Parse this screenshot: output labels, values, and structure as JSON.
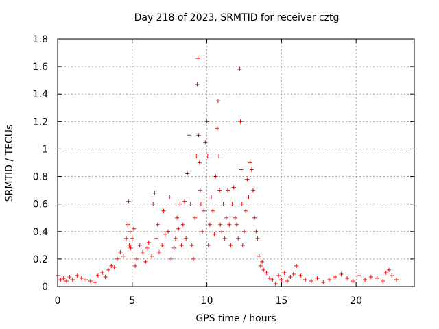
{
  "chart_data": {
    "type": "scatter",
    "title": "Day 218 of 2023, SRMTID for receiver cztg",
    "xlabel": "GPS time / hours",
    "ylabel": "SRMTID / TECUs",
    "xlim": [
      0,
      23.9
    ],
    "ylim": [
      0,
      1.8
    ],
    "xticks": [
      "0",
      "5",
      "10",
      "15",
      "20"
    ],
    "xtick_values": [
      0,
      5,
      10,
      15,
      20
    ],
    "yticks": [
      "0",
      "0.2",
      "0.4",
      "0.6",
      "0.8",
      "1",
      "1.2",
      "1.4",
      "1.6",
      "1.8"
    ],
    "ytick_values": [
      0,
      0.2,
      0.4,
      0.6,
      0.8,
      1.0,
      1.2,
      1.4,
      1.6,
      1.8
    ],
    "grid": true,
    "marker": "+",
    "marker_color": "#ff0000",
    "series": [
      {
        "name": "SRMTID",
        "x": [
          0.0,
          0.2,
          0.4,
          0.6,
          0.8,
          1.0,
          1.3,
          1.6,
          1.9,
          2.2,
          2.5,
          2.7,
          3.0,
          3.2,
          3.4,
          3.6,
          3.8,
          4.0,
          4.2,
          4.4,
          4.6,
          4.7,
          4.75,
          4.8,
          4.85,
          4.9,
          5.0,
          5.1,
          5.2,
          5.3,
          5.5,
          5.7,
          5.9,
          6.0,
          6.1,
          6.3,
          6.4,
          6.5,
          6.6,
          6.7,
          6.8,
          7.0,
          7.1,
          7.2,
          7.4,
          7.5,
          7.6,
          7.8,
          7.9,
          8.0,
          8.1,
          8.2,
          8.3,
          8.4,
          8.5,
          8.6,
          8.7,
          8.8,
          8.9,
          9.0,
          9.1,
          9.2,
          9.3,
          9.35,
          9.4,
          9.45,
          9.5,
          9.55,
          9.6,
          9.7,
          9.8,
          9.9,
          10.0,
          10.05,
          10.1,
          10.2,
          10.3,
          10.4,
          10.5,
          10.6,
          10.7,
          10.75,
          10.8,
          10.85,
          10.9,
          11.0,
          11.1,
          11.2,
          11.3,
          11.4,
          11.5,
          11.6,
          11.7,
          11.8,
          11.9,
          12.0,
          12.1,
          12.2,
          12.25,
          12.3,
          12.35,
          12.4,
          12.5,
          12.6,
          12.7,
          12.8,
          12.9,
          13.0,
          13.1,
          13.2,
          13.3,
          13.4,
          13.5,
          13.6,
          13.7,
          13.8,
          14.0,
          14.2,
          14.4,
          14.6,
          14.8,
          15.0,
          15.2,
          15.4,
          15.6,
          15.8,
          16.0,
          16.3,
          16.6,
          17.0,
          17.4,
          17.8,
          18.2,
          18.6,
          19.0,
          19.4,
          19.8,
          20.2,
          20.6,
          21.0,
          21.4,
          21.8,
          22.0,
          22.2,
          22.4,
          22.7
        ],
        "y": [
          0.08,
          0.05,
          0.06,
          0.04,
          0.07,
          0.05,
          0.08,
          0.06,
          0.05,
          0.04,
          0.03,
          0.08,
          0.1,
          0.07,
          0.12,
          0.15,
          0.14,
          0.2,
          0.25,
          0.22,
          0.35,
          0.45,
          0.62,
          0.3,
          0.4,
          0.28,
          0.35,
          0.42,
          0.15,
          0.2,
          0.3,
          0.25,
          0.18,
          0.28,
          0.32,
          0.22,
          0.6,
          0.68,
          0.35,
          0.45,
          0.25,
          0.3,
          0.55,
          0.38,
          0.4,
          0.65,
          0.2,
          0.28,
          0.35,
          0.5,
          0.42,
          0.6,
          0.3,
          0.45,
          0.62,
          0.35,
          0.82,
          1.1,
          0.6,
          0.3,
          0.2,
          0.5,
          0.95,
          1.47,
          1.66,
          1.1,
          0.9,
          0.7,
          0.6,
          0.4,
          0.55,
          1.05,
          1.2,
          0.95,
          0.3,
          0.45,
          0.65,
          0.55,
          0.38,
          0.8,
          1.15,
          1.35,
          0.95,
          0.7,
          0.45,
          0.4,
          0.6,
          0.35,
          0.5,
          0.7,
          0.45,
          0.3,
          0.6,
          0.72,
          0.5,
          0.45,
          0.35,
          1.58,
          1.2,
          0.85,
          0.6,
          0.3,
          0.4,
          0.55,
          0.78,
          0.65,
          0.9,
          0.85,
          0.7,
          0.5,
          0.4,
          0.35,
          0.22,
          0.15,
          0.18,
          0.12,
          0.1,
          0.06,
          0.05,
          0.02,
          0.08,
          0.05,
          0.1,
          0.04,
          0.07,
          0.09,
          0.15,
          0.08,
          0.05,
          0.04,
          0.06,
          0.03,
          0.05,
          0.07,
          0.09,
          0.06,
          0.04,
          0.08,
          0.05,
          0.07,
          0.06,
          0.04,
          0.1,
          0.12,
          0.08,
          0.05
        ]
      }
    ]
  }
}
